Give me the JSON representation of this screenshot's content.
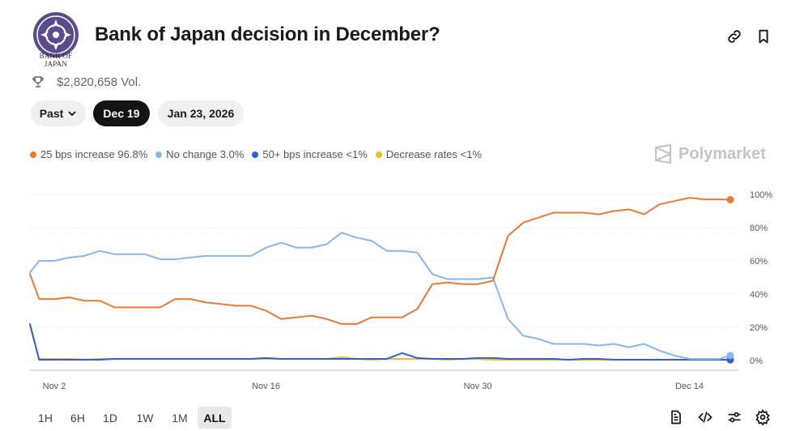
{
  "header": {
    "logo_text": "BANK OF JAPAN",
    "title": "Bank of Japan decision in December?",
    "actions": [
      {
        "icon": "link-icon"
      },
      {
        "icon": "bookmark-icon"
      }
    ]
  },
  "volume": {
    "icon": "trophy-icon",
    "text": "$2,820,658 Vol."
  },
  "date_pills": [
    {
      "label": "Past",
      "icon": "chevron-down-icon",
      "selected": false
    },
    {
      "label": "Dec 19",
      "selected": true
    },
    {
      "label": "Jan 23, 2026",
      "selected": false
    }
  ],
  "legend": [
    {
      "label": "25 bps increase 96.8%",
      "color": "#e8793a"
    },
    {
      "label": "No change 3.0%",
      "color": "#8ab4ee"
    },
    {
      "label": "50+ bps increase <1%",
      "color": "#2f62d8"
    },
    {
      "label": "Decrease rates <1%",
      "color": "#f1bc2c"
    }
  ],
  "watermark": "Polymarket",
  "chart_data": {
    "type": "line",
    "title": "",
    "xlabel": "",
    "ylabel": "",
    "ylim": [
      0,
      100
    ],
    "y_ticks": [
      "100%",
      "80%",
      "60%",
      "40%",
      "20%",
      "0%"
    ],
    "x_ticks": [
      "Nov 2",
      "Nov 16",
      "Nov 30",
      "Dec 14"
    ],
    "grid": "horizontal dotted",
    "legend_position": "top-left",
    "x": [
      "Oct 31",
      "Nov 1",
      "Nov 2",
      "Nov 3",
      "Nov 4",
      "Nov 5",
      "Nov 6",
      "Nov 7",
      "Nov 8",
      "Nov 9",
      "Nov 10",
      "Nov 11",
      "Nov 12",
      "Nov 13",
      "Nov 14",
      "Nov 15",
      "Nov 16",
      "Nov 17",
      "Nov 18",
      "Nov 19",
      "Nov 20",
      "Nov 21",
      "Nov 22",
      "Nov 23",
      "Nov 24",
      "Nov 25",
      "Nov 26",
      "Nov 27",
      "Nov 28",
      "Nov 29",
      "Nov 30",
      "Dec 1",
      "Dec 2",
      "Dec 3",
      "Dec 4",
      "Dec 5",
      "Dec 6",
      "Dec 7",
      "Dec 8",
      "Dec 9",
      "Dec 10",
      "Dec 11",
      "Dec 12",
      "Dec 13",
      "Dec 14",
      "Dec 15",
      "Dec 16",
      "Dec 17"
    ],
    "series": [
      {
        "name": "25 bps increase",
        "color": "#e8793a",
        "values": [
          52,
          37,
          37,
          38,
          36,
          36,
          32,
          32,
          32,
          32,
          37,
          37,
          35,
          34,
          33,
          33,
          30,
          25,
          26,
          27,
          25,
          22,
          22,
          26,
          26,
          26,
          31,
          46,
          47,
          46,
          46,
          48,
          75,
          83,
          86,
          89,
          89,
          89,
          88,
          90,
          91,
          88,
          94,
          96,
          98,
          97,
          97,
          96.8
        ]
      },
      {
        "name": "No change",
        "color": "#8ab4ee",
        "values": [
          53,
          60,
          60,
          62,
          63,
          66,
          64,
          64,
          64,
          61,
          61,
          62,
          63,
          63,
          63,
          63,
          68,
          71,
          68,
          68,
          70,
          77,
          74,
          72,
          66,
          66,
          65,
          52,
          49,
          49,
          49,
          50,
          25,
          15,
          13,
          10,
          10,
          10,
          9,
          10,
          8,
          10,
          6,
          3,
          1,
          1,
          1,
          3
        ]
      },
      {
        "name": "50+ bps increase",
        "color": "#2f62d8",
        "values": [
          22,
          0.5,
          0.5,
          0.5,
          0.5,
          0.5,
          1,
          1,
          1,
          1,
          1,
          1,
          1,
          1,
          1,
          1,
          1.5,
          1,
          1,
          1,
          1,
          1,
          1,
          1,
          1,
          4.5,
          1.5,
          1,
          1,
          1,
          1.5,
          1.5,
          1,
          1,
          1,
          1,
          0.5,
          1,
          1,
          0.5,
          0.5,
          0.5,
          0.5,
          0.5,
          0.5,
          0.5,
          0.5,
          0.5
        ]
      },
      {
        "name": "Decrease rates",
        "color": "#f1bc2c",
        "values": [
          21,
          1,
          1,
          1,
          0.5,
          1,
          1,
          1,
          1,
          1,
          1,
          1,
          1,
          1,
          1,
          1,
          1,
          1,
          1,
          1,
          1,
          2,
          1,
          0.5,
          1,
          1,
          1,
          1,
          0.5,
          1,
          1,
          0.5,
          0.5,
          0.5,
          0.5,
          0.5,
          0.5,
          0.5,
          0.5,
          0.5,
          0.5,
          0.5,
          0.5,
          0.5,
          0.5,
          0.5,
          0.5,
          0.2
        ]
      }
    ]
  },
  "ranges": [
    {
      "label": "1H",
      "selected": false
    },
    {
      "label": "6H",
      "selected": false
    },
    {
      "label": "1D",
      "selected": false
    },
    {
      "label": "1W",
      "selected": false
    },
    {
      "label": "1M",
      "selected": false
    },
    {
      "label": "ALL",
      "selected": true
    }
  ],
  "bottom_actions": [
    {
      "icon": "document-icon"
    },
    {
      "icon": "code-icon"
    },
    {
      "icon": "sliders-icon"
    },
    {
      "icon": "settings-icon"
    }
  ]
}
